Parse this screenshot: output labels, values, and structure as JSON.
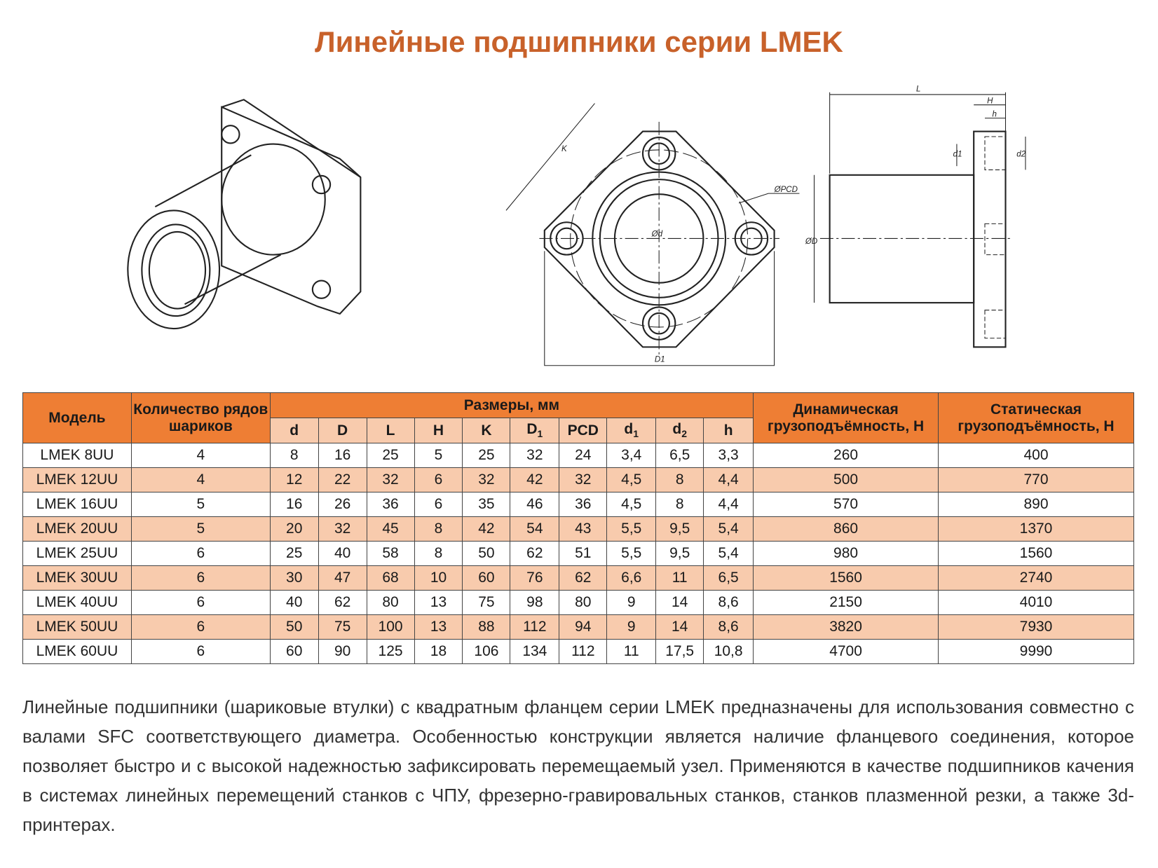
{
  "title": "Линейные подшипники серии LMEK",
  "drawing_labels": {
    "K": "K",
    "PCD": "ØPCD",
    "d": "Ød",
    "D1": "D1",
    "L": "L",
    "H": "H",
    "h": "h",
    "d1": "d1",
    "d2": "d2",
    "D": "ØD"
  },
  "table": {
    "headers": {
      "model": "Модель",
      "rows": "Количество рядов шариков",
      "dims": "Размеры, мм",
      "dynamic": "Динамическая грузоподъёмность, Н",
      "static": "Статическая грузоподъёмность, Н"
    },
    "dim_columns": [
      "d",
      "D",
      "L",
      "H",
      "K",
      "D",
      "PCD",
      "d",
      "d",
      "h"
    ],
    "dim_subscripts": [
      "",
      "",
      "",
      "",
      "",
      "1",
      "",
      "1",
      "2",
      ""
    ],
    "rows": [
      [
        "LMEK 8UU",
        "4",
        "8",
        "16",
        "25",
        "5",
        "25",
        "32",
        "24",
        "3,4",
        "6,5",
        "3,3",
        "260",
        "400"
      ],
      [
        "LMEK 12UU",
        "4",
        "12",
        "22",
        "32",
        "6",
        "32",
        "42",
        "32",
        "4,5",
        "8",
        "4,4",
        "500",
        "770"
      ],
      [
        "LMEK 16UU",
        "5",
        "16",
        "26",
        "36",
        "6",
        "35",
        "46",
        "36",
        "4,5",
        "8",
        "4,4",
        "570",
        "890"
      ],
      [
        "LMEK 20UU",
        "5",
        "20",
        "32",
        "45",
        "8",
        "42",
        "54",
        "43",
        "5,5",
        "9,5",
        "5,4",
        "860",
        "1370"
      ],
      [
        "LMEK 25UU",
        "6",
        "25",
        "40",
        "58",
        "8",
        "50",
        "62",
        "51",
        "5,5",
        "9,5",
        "5,4",
        "980",
        "1560"
      ],
      [
        "LMEK 30UU",
        "6",
        "30",
        "47",
        "68",
        "10",
        "60",
        "76",
        "62",
        "6,6",
        "11",
        "6,5",
        "1560",
        "2740"
      ],
      [
        "LMEK 40UU",
        "6",
        "40",
        "62",
        "80",
        "13",
        "75",
        "98",
        "80",
        "9",
        "14",
        "8,6",
        "2150",
        "4010"
      ],
      [
        "LMEK 50UU",
        "6",
        "50",
        "75",
        "100",
        "13",
        "88",
        "112",
        "94",
        "9",
        "14",
        "8,6",
        "3820",
        "7930"
      ],
      [
        "LMEK 60UU",
        "6",
        "60",
        "90",
        "125",
        "18",
        "106",
        "134",
        "112",
        "11",
        "17,5",
        "10,8",
        "4700",
        "9990"
      ]
    ]
  },
  "description": "Линейные подшипники (шариковые втулки) с квадратным фланцем серии LMEK предназначены для использования совместно с валами SFC соответствующего диаметра. Особенностью конструкции является наличие фланцевого соединения, которое позволяет быстро и с высокой надежностью зафиксировать перемещаемый узел. Применяются в качестве подшипников качения в системах линейных перемещений станков с ЧПУ, фрезерно-гравировальных станков, станков плазменной резки, а также 3d-принтерах.",
  "colors": {
    "title": "#c8612a",
    "header": "#ee7e34",
    "row_alt": "#f8cbad"
  }
}
